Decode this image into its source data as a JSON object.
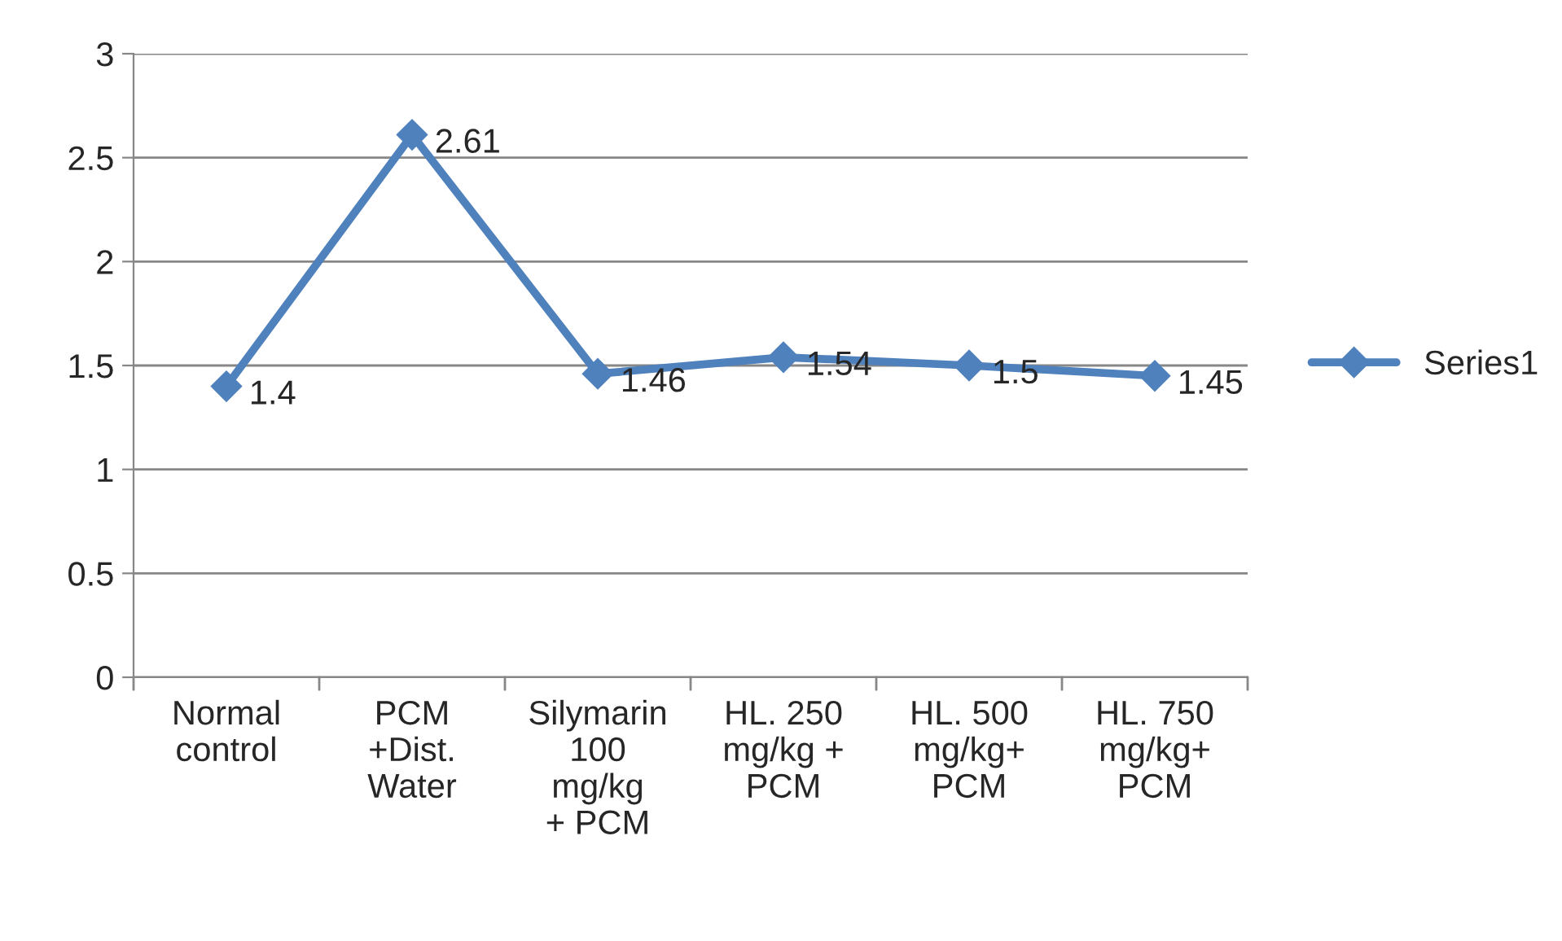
{
  "chart_data": {
    "type": "line",
    "categories": [
      "Normal\ncontrol",
      "PCM\n+Dist.\nWater",
      "Silymarin\n100\nmg/kg\n+ PCM",
      "HL. 250\nmg/kg +\nPCM",
      "HL. 500\nmg/kg+\nPCM",
      "HL. 750\nmg/kg+\nPCM"
    ],
    "series": [
      {
        "name": "Series1",
        "color": "#4f81bd",
        "values": [
          1.4,
          2.61,
          1.46,
          1.54,
          1.5,
          1.45
        ]
      }
    ],
    "ylim": [
      0,
      3
    ],
    "yticks": [
      0,
      0.5,
      1,
      1.5,
      2,
      2.5,
      3
    ],
    "grid": "y",
    "legend": "right",
    "marker": "diamond",
    "line_style": "solid",
    "data_labels": true
  }
}
